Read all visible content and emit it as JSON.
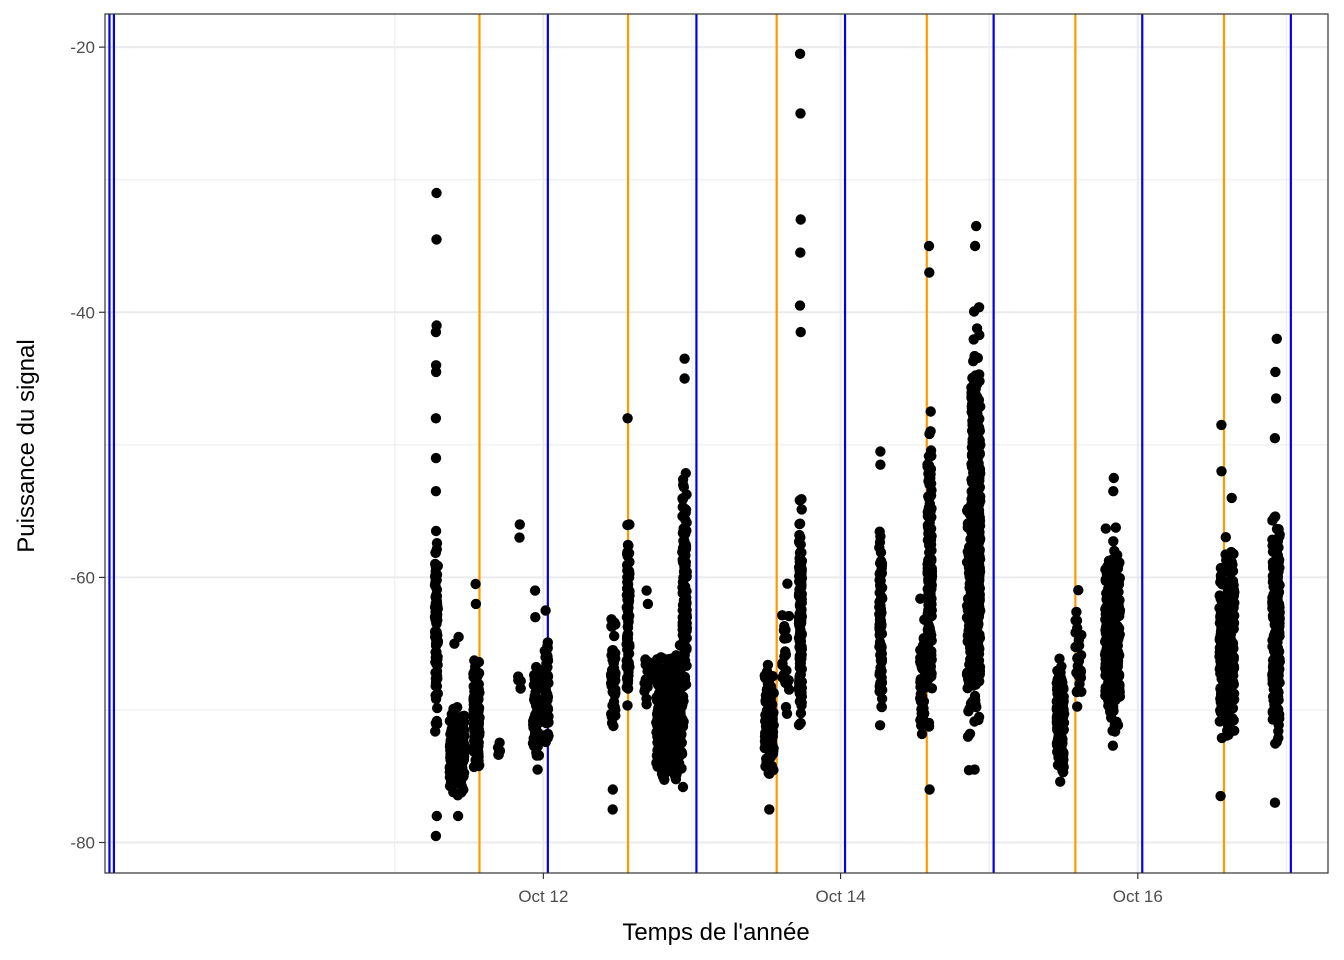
{
  "chart_data": {
    "type": "scatter",
    "title": "",
    "xlabel": "Temps de l'année",
    "ylabel": "Puissance du signal",
    "x_unit": "days since Oct 1",
    "xlim": [
      9.05,
      17.28
    ],
    "ylim": [
      -82.3,
      -17.5
    ],
    "x_ticks": [
      {
        "value": 12,
        "label": "Oct 12"
      },
      {
        "value": 14,
        "label": "Oct 14"
      },
      {
        "value": 16,
        "label": "Oct 16"
      }
    ],
    "y_ticks": [
      {
        "value": -20,
        "label": "-20"
      },
      {
        "value": -40,
        "label": "-40"
      },
      {
        "value": -60,
        "label": "-60"
      },
      {
        "value": -80,
        "label": "-80"
      }
    ],
    "colors": {
      "points": "#000000",
      "sunrise": "#FF9900",
      "sunset": "#0000EE",
      "grid": "#EBEBEB",
      "border": "#333333"
    },
    "vlines": [
      {
        "name": "sunset",
        "color": "#0000EE",
        "x": 9.08
      },
      {
        "name": "sunset",
        "color": "#0000EE",
        "x": 9.11
      },
      {
        "name": "sunrise",
        "color": "#FF9900",
        "x": 11.57
      },
      {
        "name": "sunset",
        "color": "#0000EE",
        "x": 12.03
      },
      {
        "name": "sunrise",
        "color": "#FF9900",
        "x": 12.57
      },
      {
        "name": "sunset",
        "color": "#0000EE",
        "x": 13.03
      },
      {
        "name": "sunrise",
        "color": "#FF9900",
        "x": 13.57
      },
      {
        "name": "sunset",
        "color": "#0000EE",
        "x": 14.03
      },
      {
        "name": "sunrise",
        "color": "#FF9900",
        "x": 14.58
      },
      {
        "name": "sunset",
        "color": "#0000EE",
        "x": 15.03
      },
      {
        "name": "sunrise",
        "color": "#FF9900",
        "x": 15.58
      },
      {
        "name": "sunset",
        "color": "#0000EE",
        "x": 16.03
      },
      {
        "name": "sunrise",
        "color": "#FF9900",
        "x": 16.58
      },
      {
        "name": "sunset",
        "color": "#0000EE",
        "x": 17.03
      }
    ],
    "point_clusters": [
      {
        "x": 11.28,
        "width": 0.02,
        "y_min": -74,
        "y_max": -55,
        "n": 90,
        "outliers": [
          -31,
          -34.5,
          -41,
          -41.5,
          -44,
          -44.5,
          -48,
          -51,
          -53.5,
          -56.5,
          -78,
          -79.5
        ]
      },
      {
        "x": 11.42,
        "width": 0.1,
        "y_min": -77,
        "y_max": -69,
        "n": 260,
        "outliers": [
          -64.5,
          -65,
          -78
        ]
      },
      {
        "x": 11.55,
        "width": 0.04,
        "y_min": -76,
        "y_max": -64.5,
        "n": 150,
        "outliers": [
          -60.5,
          -62
        ]
      },
      {
        "x": 11.7,
        "width": 0.02,
        "y_min": -74,
        "y_max": -72,
        "n": 6,
        "outliers": []
      },
      {
        "x": 11.84,
        "width": 0.02,
        "y_min": -70,
        "y_max": -67,
        "n": 5,
        "outliers": [
          -56,
          -57
        ]
      },
      {
        "x": 11.95,
        "width": 0.04,
        "y_min": -75.5,
        "y_max": -65,
        "n": 50,
        "outliers": [
          -61,
          -63
        ]
      },
      {
        "x": 12.02,
        "width": 0.03,
        "y_min": -75,
        "y_max": -63,
        "n": 60,
        "outliers": [
          -62.5
        ]
      },
      {
        "x": 12.47,
        "width": 0.03,
        "y_min": -74,
        "y_max": -62,
        "n": 60,
        "outliers": [
          -76,
          -77.5
        ]
      },
      {
        "x": 12.57,
        "width": 0.02,
        "y_min": -74,
        "y_max": -52.5,
        "n": 80,
        "outliers": [
          -48
        ]
      },
      {
        "x": 12.7,
        "width": 0.04,
        "y_min": -71,
        "y_max": -64,
        "n": 20,
        "outliers": [
          -61,
          -62
        ]
      },
      {
        "x": 12.85,
        "width": 0.18,
        "y_min": -77,
        "y_max": -64,
        "n": 320,
        "outliers": []
      },
      {
        "x": 12.95,
        "width": 0.03,
        "y_min": -75,
        "y_max": -47,
        "n": 120,
        "outliers": [
          -43.5,
          -45
        ]
      },
      {
        "x": 13.52,
        "width": 0.06,
        "y_min": -76,
        "y_max": -65.5,
        "n": 130,
        "outliers": [
          -77.5
        ]
      },
      {
        "x": 13.63,
        "width": 0.05,
        "y_min": -73,
        "y_max": -58,
        "n": 25,
        "outliers": []
      },
      {
        "x": 13.73,
        "width": 0.02,
        "y_min": -74,
        "y_max": -52,
        "n": 140,
        "outliers": [
          -20.5,
          -25,
          -33,
          -35.5,
          -39.5,
          -41.5
        ]
      },
      {
        "x": 14.27,
        "width": 0.02,
        "y_min": -74,
        "y_max": -54,
        "n": 90,
        "outliers": [
          -50.5,
          -51.5
        ]
      },
      {
        "x": 14.55,
        "width": 0.03,
        "y_min": -73,
        "y_max": -61,
        "n": 60,
        "outliers": []
      },
      {
        "x": 14.6,
        "width": 0.03,
        "y_min": -74,
        "y_max": -44,
        "n": 160,
        "outliers": [
          -35,
          -37,
          -76
        ]
      },
      {
        "x": 14.87,
        "width": 0.04,
        "y_min": -75.5,
        "y_max": -52,
        "n": 110,
        "outliers": []
      },
      {
        "x": 14.91,
        "width": 0.06,
        "y_min": -74,
        "y_max": -38,
        "n": 450,
        "outliers": [
          -33.5,
          -35,
          -74.5
        ]
      },
      {
        "x": 15.48,
        "width": 0.05,
        "y_min": -76.5,
        "y_max": -65,
        "n": 180,
        "outliers": []
      },
      {
        "x": 15.6,
        "width": 0.04,
        "y_min": -72.5,
        "y_max": -60,
        "n": 30,
        "outliers": []
      },
      {
        "x": 15.83,
        "width": 0.1,
        "y_min": -74,
        "y_max": -55,
        "n": 320,
        "outliers": [
          -52.5,
          -53.5
        ]
      },
      {
        "x": 16.56,
        "width": 0.02,
        "y_min": -74,
        "y_max": -57,
        "n": 90,
        "outliers": [
          -48.5,
          -52,
          -76.5
        ]
      },
      {
        "x": 16.62,
        "width": 0.06,
        "y_min": -74,
        "y_max": -56,
        "n": 230,
        "outliers": [
          -54
        ]
      },
      {
        "x": 16.93,
        "width": 0.05,
        "y_min": -75,
        "y_max": -52,
        "n": 220,
        "outliers": [
          -42,
          -44.5,
          -46.5,
          -49.5,
          -77
        ]
      }
    ]
  }
}
